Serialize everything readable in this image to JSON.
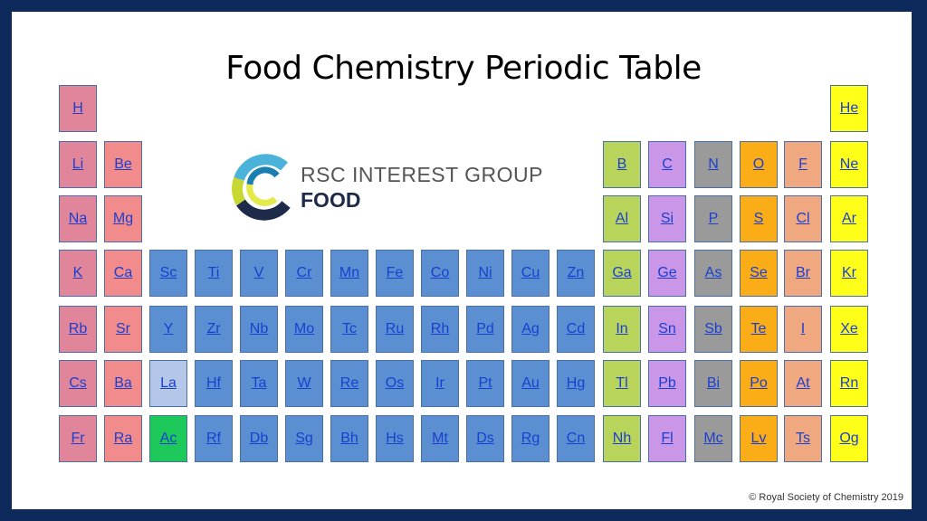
{
  "title": "Food Chemistry Periodic Table",
  "logo": {
    "line1": "RSC INTEREST GROUP",
    "line2": "FOOD"
  },
  "copyright": "© Royal Society of Chemistry 2019",
  "colors": {
    "alkali": "#e0859a",
    "alkaline": "#f28b8b",
    "transition": "#5b8fd1",
    "lanthanide": "#b4c7e8",
    "actinide": "#1cc95a",
    "post_transition": "#b9d45a",
    "metalloid": "#c996e8",
    "pnictogen": "#9a9a9a",
    "chalcogen": "#fbad18",
    "halogen": "#f0a880",
    "noble": "#ffff1a"
  },
  "rows": [
    [
      [
        "H",
        "alkali"
      ],
      null,
      null,
      null,
      null,
      null,
      null,
      null,
      null,
      null,
      null,
      null,
      null,
      null,
      null,
      null,
      null,
      [
        "He",
        "noble"
      ]
    ],
    [
      [
        "Li",
        "alkali"
      ],
      [
        "Be",
        "alkaline"
      ],
      null,
      null,
      null,
      null,
      null,
      null,
      null,
      null,
      null,
      null,
      [
        "B",
        "post_transition"
      ],
      [
        "C",
        "metalloid"
      ],
      [
        "N",
        "pnictogen"
      ],
      [
        "O",
        "chalcogen"
      ],
      [
        "F",
        "halogen"
      ],
      [
        "Ne",
        "noble"
      ]
    ],
    [
      [
        "Na",
        "alkali"
      ],
      [
        "Mg",
        "alkaline"
      ],
      null,
      null,
      null,
      null,
      null,
      null,
      null,
      null,
      null,
      null,
      [
        "Al",
        "post_transition"
      ],
      [
        "Si",
        "metalloid"
      ],
      [
        "P",
        "pnictogen"
      ],
      [
        "S",
        "chalcogen"
      ],
      [
        "Cl",
        "halogen"
      ],
      [
        "Ar",
        "noble"
      ]
    ],
    [
      [
        "K",
        "alkali"
      ],
      [
        "Ca",
        "alkaline"
      ],
      [
        "Sc",
        "transition"
      ],
      [
        "Ti",
        "transition"
      ],
      [
        "V",
        "transition"
      ],
      [
        "Cr",
        "transition"
      ],
      [
        "Mn",
        "transition"
      ],
      [
        "Fe",
        "transition"
      ],
      [
        "Co",
        "transition"
      ],
      [
        "Ni",
        "transition"
      ],
      [
        "Cu",
        "transition"
      ],
      [
        "Zn",
        "transition"
      ],
      [
        "Ga",
        "post_transition"
      ],
      [
        "Ge",
        "metalloid"
      ],
      [
        "As",
        "pnictogen"
      ],
      [
        "Se",
        "chalcogen"
      ],
      [
        "Br",
        "halogen"
      ],
      [
        "Kr",
        "noble"
      ]
    ],
    [
      [
        "Rb",
        "alkali"
      ],
      [
        "Sr",
        "alkaline"
      ],
      [
        "Y",
        "transition"
      ],
      [
        "Zr",
        "transition"
      ],
      [
        "Nb",
        "transition"
      ],
      [
        "Mo",
        "transition"
      ],
      [
        "Tc",
        "transition"
      ],
      [
        "Ru",
        "transition"
      ],
      [
        "Rh",
        "transition"
      ],
      [
        "Pd",
        "transition"
      ],
      [
        "Ag",
        "transition"
      ],
      [
        "Cd",
        "transition"
      ],
      [
        "In",
        "post_transition"
      ],
      [
        "Sn",
        "metalloid"
      ],
      [
        "Sb",
        "pnictogen"
      ],
      [
        "Te",
        "chalcogen"
      ],
      [
        "I",
        "halogen"
      ],
      [
        "Xe",
        "noble"
      ]
    ],
    [
      [
        "Cs",
        "alkali"
      ],
      [
        "Ba",
        "alkaline"
      ],
      [
        "La",
        "lanthanide"
      ],
      [
        "Hf",
        "transition"
      ],
      [
        "Ta",
        "transition"
      ],
      [
        "W",
        "transition"
      ],
      [
        "Re",
        "transition"
      ],
      [
        "Os",
        "transition"
      ],
      [
        "Ir",
        "transition"
      ],
      [
        "Pt",
        "transition"
      ],
      [
        "Au",
        "transition"
      ],
      [
        "Hg",
        "transition"
      ],
      [
        "Tl",
        "post_transition"
      ],
      [
        "Pb",
        "metalloid"
      ],
      [
        "Bi",
        "pnictogen"
      ],
      [
        "Po",
        "chalcogen"
      ],
      [
        "At",
        "halogen"
      ],
      [
        "Rn",
        "noble"
      ]
    ],
    [
      [
        "Fr",
        "alkali"
      ],
      [
        "Ra",
        "alkaline"
      ],
      [
        "Ac",
        "actinide"
      ],
      [
        "Rf",
        "transition"
      ],
      [
        "Db",
        "transition"
      ],
      [
        "Sg",
        "transition"
      ],
      [
        "Bh",
        "transition"
      ],
      [
        "Hs",
        "transition"
      ],
      [
        "Mt",
        "transition"
      ],
      [
        "Ds",
        "transition"
      ],
      [
        "Rg",
        "transition"
      ],
      [
        "Cn",
        "transition"
      ],
      [
        "Nh",
        "post_transition"
      ],
      [
        "Fl",
        "metalloid"
      ],
      [
        "Mc",
        "pnictogen"
      ],
      [
        "Lv",
        "chalcogen"
      ],
      [
        "Ts",
        "halogen"
      ],
      [
        "Og",
        "noble"
      ]
    ]
  ]
}
